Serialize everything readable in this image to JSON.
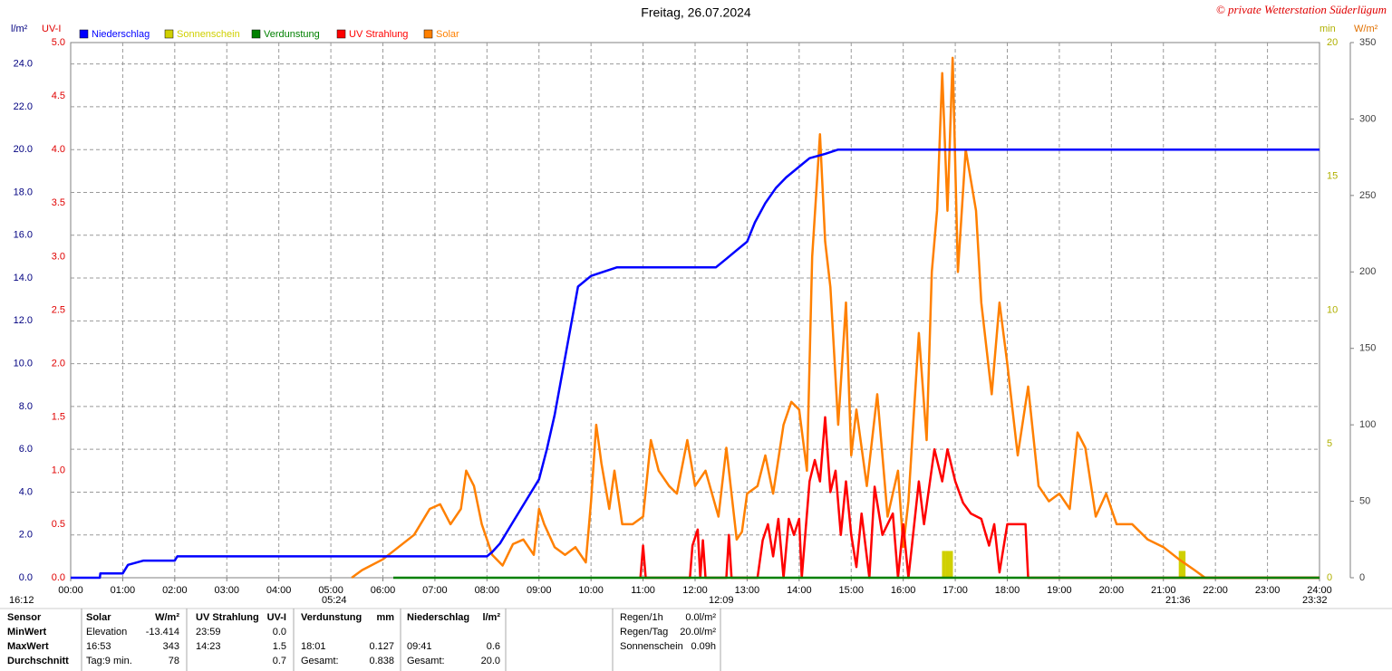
{
  "chart_data": {
    "type": "line",
    "title": "Freitag, 26.07.2024",
    "credit": "© private Wetterstation Süderlügum",
    "ylabel": "l/m²",
    "y2label": "UV-I",
    "y3label": "min",
    "y4label": "W/m²",
    "grid": true,
    "xlim": [
      0,
      24
    ],
    "xticks": [
      {
        "value": 0,
        "label": "00:00"
      },
      {
        "value": 1,
        "label": "01:00"
      },
      {
        "value": 2,
        "label": "02:00"
      },
      {
        "value": 3,
        "label": "03:00"
      },
      {
        "value": 4,
        "label": "04:00"
      },
      {
        "value": 5,
        "label": "05:00"
      },
      {
        "value": 6,
        "label": "06:00"
      },
      {
        "value": 7,
        "label": "07:00"
      },
      {
        "value": 8,
        "label": "08:00"
      },
      {
        "value": 9,
        "label": "09:00"
      },
      {
        "value": 10,
        "label": "10:00"
      },
      {
        "value": 11,
        "label": "11:00"
      },
      {
        "value": 12,
        "label": "12:00"
      },
      {
        "value": 13,
        "label": "13:00"
      },
      {
        "value": 14,
        "label": "14:00"
      },
      {
        "value": 15,
        "label": "15:00"
      },
      {
        "value": 16,
        "label": "16:00"
      },
      {
        "value": 17,
        "label": "17:00"
      },
      {
        "value": 18,
        "label": "18:00"
      },
      {
        "value": 19,
        "label": "19:00"
      },
      {
        "value": 20,
        "label": "20:00"
      },
      {
        "value": 21,
        "label": "21:00"
      },
      {
        "value": 22,
        "label": "22:00"
      },
      {
        "value": 23,
        "label": "23:00"
      },
      {
        "value": 24,
        "label": "24:00"
      }
    ],
    "ylim": [
      0,
      25
    ],
    "yticks": [
      {
        "value": 0,
        "label": "0.0"
      },
      {
        "value": 2,
        "label": "2.0"
      },
      {
        "value": 4,
        "label": "4.0"
      },
      {
        "value": 6,
        "label": "6.0"
      },
      {
        "value": 8,
        "label": "8.0"
      },
      {
        "value": 10,
        "label": "10.0"
      },
      {
        "value": 12,
        "label": "12.0"
      },
      {
        "value": 14,
        "label": "14.0"
      },
      {
        "value": 16,
        "label": "16.0"
      },
      {
        "value": 18,
        "label": "18.0"
      },
      {
        "value": 20,
        "label": "20.0"
      },
      {
        "value": 22,
        "label": "22.0"
      },
      {
        "value": 24,
        "label": "24.0"
      }
    ],
    "y2lim": [
      0,
      5
    ],
    "y2ticks": [
      {
        "value": 0,
        "label": "0.0"
      },
      {
        "value": 0.5,
        "label": "0.5"
      },
      {
        "value": 1,
        "label": "1.0"
      },
      {
        "value": 1.5,
        "label": "1.5"
      },
      {
        "value": 2,
        "label": "2.0"
      },
      {
        "value": 2.5,
        "label": "2.5"
      },
      {
        "value": 3,
        "label": "3.0"
      },
      {
        "value": 3.5,
        "label": "3.5"
      },
      {
        "value": 4,
        "label": "4.0"
      },
      {
        "value": 4.5,
        "label": "4.5"
      },
      {
        "value": 5,
        "label": "5.0"
      }
    ],
    "y3lim": [
      0,
      20
    ],
    "y3ticks": [
      0,
      5,
      10,
      15,
      20
    ],
    "y4lim": [
      0,
      350
    ],
    "y4ticks": [
      0,
      50,
      100,
      150,
      200,
      250,
      300,
      350
    ],
    "series": [
      {
        "name": "Niederschlag",
        "color": "#0000ff",
        "x": [
          0,
          0.56,
          0.57,
          1.0,
          1.1,
          1.4,
          2.0,
          2.05,
          8.0,
          8.1,
          8.25,
          8.5,
          8.75,
          9.0,
          9.15,
          9.3,
          9.45,
          9.6,
          9.75,
          10.0,
          10.25,
          10.5,
          12.4,
          12.6,
          12.8,
          13.0,
          13.15,
          13.35,
          13.55,
          13.75,
          14.0,
          14.2,
          14.5,
          14.75,
          24
        ],
        "values": [
          0,
          0,
          0.2,
          0.2,
          0.6,
          0.8,
          0.8,
          1.0,
          1.0,
          1.2,
          1.6,
          2.6,
          3.6,
          4.6,
          6.0,
          7.6,
          9.6,
          11.6,
          13.6,
          14.1,
          14.3,
          14.5,
          14.5,
          14.9,
          15.3,
          15.7,
          16.6,
          17.5,
          18.2,
          18.7,
          19.2,
          19.6,
          19.8,
          20.0,
          20.0
        ]
      },
      {
        "name": "Sonnenschein",
        "color": "#d0d000",
        "type": "bar",
        "axis": "y3",
        "x": [
          16.78,
          16.85,
          16.92,
          21.33,
          21.39
        ],
        "values": [
          1,
          1,
          1,
          1,
          1
        ]
      },
      {
        "name": "Verdunstung",
        "color": "#008000",
        "x": [
          6.2,
          24
        ],
        "values": [
          0,
          0
        ]
      },
      {
        "name": "UV Strahlung",
        "color": "#ff0000",
        "axis": "y2",
        "x": [
          10.95,
          11.0,
          11.05,
          11.9,
          11.95,
          12.05,
          12.1,
          12.15,
          12.2,
          12.6,
          12.65,
          12.7,
          13.2,
          13.3,
          13.4,
          13.5,
          13.6,
          13.7,
          13.8,
          13.9,
          14.0,
          14.05,
          14.2,
          14.3,
          14.4,
          14.5,
          14.6,
          14.7,
          14.8,
          14.9,
          15.0,
          15.1,
          15.2,
          15.35,
          15.45,
          15.6,
          15.8,
          15.9,
          16.0,
          16.1,
          16.3,
          16.4,
          16.6,
          16.75,
          16.85,
          17.0,
          17.15,
          17.3,
          17.5,
          17.65,
          17.75,
          17.85,
          18.0,
          18.15,
          18.35,
          18.4,
          24
        ],
        "values": [
          0,
          0.3,
          0,
          0,
          0.3,
          0.45,
          0,
          0.35,
          0,
          0,
          0.4,
          0,
          0,
          0.35,
          0.5,
          0.2,
          0.55,
          0,
          0.55,
          0.4,
          0.55,
          0,
          0.9,
          1.1,
          0.9,
          1.5,
          0.8,
          1.0,
          0.4,
          0.9,
          0.4,
          0.1,
          0.6,
          0,
          0.85,
          0.4,
          0.6,
          0,
          0.5,
          0,
          0.9,
          0.5,
          1.2,
          0.9,
          1.2,
          0.9,
          0.7,
          0.6,
          0.55,
          0.3,
          0.5,
          0.05,
          0.5,
          0.5,
          0.5,
          0,
          0
        ]
      },
      {
        "name": "Solar",
        "color": "#ff8000",
        "axis": "y4",
        "x": [
          5.4,
          5.6,
          6.0,
          6.3,
          6.6,
          6.9,
          7.1,
          7.3,
          7.5,
          7.6,
          7.75,
          7.9,
          8.1,
          8.3,
          8.5,
          8.7,
          8.9,
          9.0,
          9.1,
          9.3,
          9.5,
          9.7,
          9.9,
          10.0,
          10.1,
          10.2,
          10.35,
          10.45,
          10.6,
          10.8,
          11.0,
          11.15,
          11.3,
          11.5,
          11.65,
          11.85,
          12.0,
          12.2,
          12.45,
          12.6,
          12.8,
          12.9,
          13.0,
          13.2,
          13.35,
          13.5,
          13.7,
          13.85,
          14.0,
          14.15,
          14.25,
          14.4,
          14.5,
          14.6,
          14.75,
          14.9,
          15.0,
          15.1,
          15.3,
          15.5,
          15.7,
          15.9,
          16.0,
          16.1,
          16.3,
          16.45,
          16.55,
          16.65,
          16.75,
          16.85,
          16.95,
          17.05,
          17.2,
          17.4,
          17.5,
          17.7,
          17.85,
          18.0,
          18.2,
          18.4,
          18.6,
          18.8,
          19.0,
          19.2,
          19.35,
          19.5,
          19.7,
          19.9,
          20.1,
          20.4,
          20.7,
          21.0,
          21.3,
          21.6,
          21.8,
          24
        ],
        "values": [
          0,
          5,
          12,
          20,
          28,
          45,
          48,
          35,
          45,
          70,
          60,
          35,
          15,
          8,
          22,
          25,
          15,
          45,
          35,
          20,
          15,
          20,
          10,
          50,
          100,
          75,
          45,
          70,
          35,
          35,
          40,
          90,
          70,
          60,
          55,
          90,
          60,
          70,
          40,
          85,
          25,
          30,
          55,
          60,
          80,
          55,
          100,
          115,
          110,
          70,
          210,
          290,
          220,
          190,
          100,
          180,
          80,
          110,
          60,
          120,
          40,
          70,
          20,
          50,
          160,
          90,
          200,
          240,
          330,
          240,
          340,
          200,
          280,
          240,
          180,
          120,
          180,
          140,
          80,
          125,
          60,
          50,
          55,
          45,
          95,
          85,
          40,
          55,
          35,
          35,
          25,
          20,
          12,
          5,
          0,
          0
        ]
      }
    ],
    "annotations": [
      "16:12",
      "05:24",
      "12:09",
      "21:36",
      "23:32"
    ]
  },
  "stats": {
    "rows": [
      [
        "Sensor",
        "Solar",
        "W/m²",
        "UV Strahlung",
        "UV-I",
        "Verdunstung",
        "mm",
        "Niederschlag",
        "l/m²"
      ],
      [
        "MinWert",
        "Elevation",
        "-13.414",
        "23:59",
        "0.0",
        null,
        null,
        null,
        null
      ],
      [
        "MaxWert",
        "16:53",
        "343",
        "14:23",
        "1.5",
        "18:01",
        "0.127",
        "09:41",
        "0.6"
      ],
      [
        "Durchschnitt",
        "Tag:9 min.",
        "78",
        null,
        "0.7",
        "Gesamt:",
        "0.838",
        "Gesamt:",
        "20.0"
      ]
    ]
  },
  "summary": [
    [
      "Regen/1h",
      "0.0l/m²"
    ],
    [
      "Regen/Tag",
      "20.0l/m²"
    ],
    [
      "Sonnenschein",
      "0.09h"
    ]
  ]
}
